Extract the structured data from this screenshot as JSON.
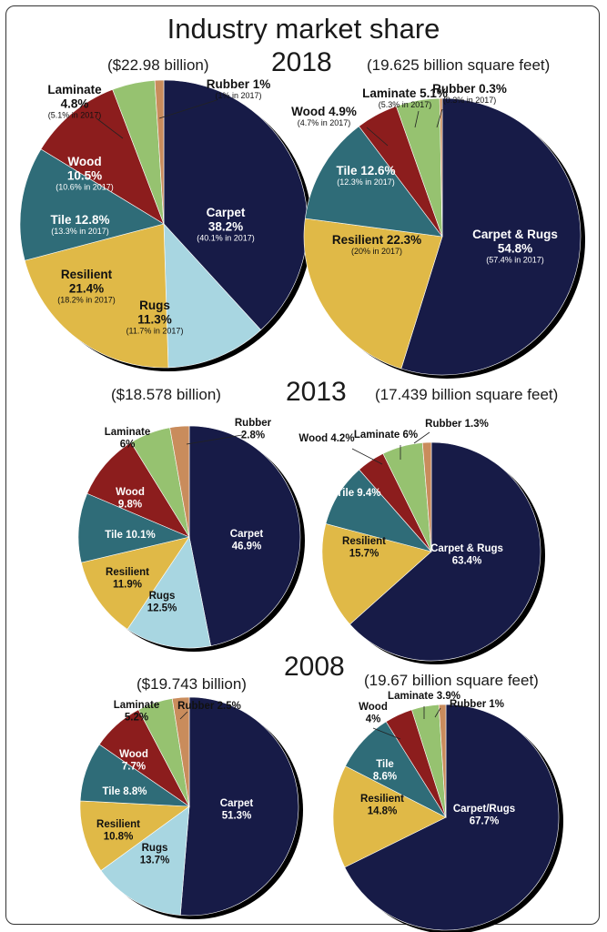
{
  "title": "Industry market share",
  "colors": {
    "Carpet": "#171b47",
    "Rugs": "#a8d6e1",
    "Resilient": "#e0b947",
    "Tile": "#2f6c78",
    "Wood": "#8c1d1d",
    "Laminate": "#96c270",
    "Rubber": "#c98c5c"
  },
  "sections": [
    {
      "year": "2018",
      "dollar_caption": "($22.98 billion)",
      "sqft_caption": "(19.625 billion square feet)"
    },
    {
      "year": "2013",
      "dollar_caption": "($18.578 billion)",
      "sqft_caption": "(17.439 billion square feet)"
    },
    {
      "year": "2008",
      "dollar_caption": "($19.743 billion)",
      "sqft_caption": "(19.67 billion square feet)"
    }
  ],
  "chart_data": [
    {
      "type": "pie",
      "year": "2018",
      "caption": "($22.98 billion)",
      "slices": [
        {
          "category": "Carpet",
          "value": 38.2,
          "label": "Carpet",
          "value_label": "38.2%",
          "prior": "(40.1% in 2017)"
        },
        {
          "category": "Rugs",
          "value": 11.3,
          "label": "Rugs",
          "value_label": "11.3%",
          "prior": "(11.7% in 2017)"
        },
        {
          "category": "Resilient",
          "value": 21.4,
          "label": "Resilient",
          "value_label": "21.4%",
          "prior": "(18.2% in 2017)"
        },
        {
          "category": "Tile",
          "value": 12.8,
          "label": "Tile 12.8%",
          "value_label": "",
          "prior": "(13.3% in 2017)"
        },
        {
          "category": "Wood",
          "value": 10.5,
          "label": "Wood",
          "value_label": "10.5%",
          "prior": "(10.6% in 2017)"
        },
        {
          "category": "Laminate",
          "value": 4.8,
          "label": "Laminate",
          "value_label": "4.8%",
          "prior": "(5.1% in 2017)"
        },
        {
          "category": "Rubber",
          "value": 1,
          "label": "Rubber 1%",
          "value_label": "",
          "prior": "(1% in 2017)"
        }
      ]
    },
    {
      "type": "pie",
      "year": "2018",
      "caption": "(19.625 billion square feet)",
      "slices": [
        {
          "category": "Carpet",
          "value": 54.8,
          "label": "Carpet & Rugs",
          "value_label": "54.8%",
          "prior": "(57.4% in 2017)"
        },
        {
          "category": "Resilient",
          "value": 22.3,
          "label": "Resilient 22.3%",
          "value_label": "",
          "prior": "(20% in 2017)"
        },
        {
          "category": "Tile",
          "value": 12.6,
          "label": "Tile 12.6%",
          "value_label": "",
          "prior": "(12.3% in 2017)"
        },
        {
          "category": "Wood",
          "value": 4.9,
          "label": "Wood 4.9%",
          "value_label": "",
          "prior": "(4.7% in 2017)"
        },
        {
          "category": "Laminate",
          "value": 5.1,
          "label": "Laminate 5.1%",
          "value_label": "",
          "prior": "(5.3% in 2017)"
        },
        {
          "category": "Rubber",
          "value": 0.3,
          "label": "Rubber 0.3%",
          "value_label": "",
          "prior": "(0.3% in 2017)"
        }
      ]
    },
    {
      "type": "pie",
      "year": "2013",
      "caption": "($18.578 billion)",
      "slices": [
        {
          "category": "Carpet",
          "value": 46.9,
          "label": "Carpet",
          "value_label": "46.9%",
          "prior": ""
        },
        {
          "category": "Rugs",
          "value": 12.5,
          "label": "Rugs",
          "value_label": "12.5%",
          "prior": ""
        },
        {
          "category": "Resilient",
          "value": 11.9,
          "label": "Resilient",
          "value_label": "11.9%",
          "prior": ""
        },
        {
          "category": "Tile",
          "value": 10.1,
          "label": "Tile 10.1%",
          "value_label": "",
          "prior": ""
        },
        {
          "category": "Wood",
          "value": 9.8,
          "label": "Wood",
          "value_label": "9.8%",
          "prior": ""
        },
        {
          "category": "Laminate",
          "value": 6,
          "label": "Laminate",
          "value_label": "6%",
          "prior": ""
        },
        {
          "category": "Rubber",
          "value": 2.8,
          "label": "Rubber",
          "value_label": "2.8%",
          "prior": ""
        }
      ]
    },
    {
      "type": "pie",
      "year": "2013",
      "caption": "(17.439 billion square feet)",
      "slices": [
        {
          "category": "Carpet",
          "value": 63.4,
          "label": "Carpet & Rugs",
          "value_label": "63.4%",
          "prior": ""
        },
        {
          "category": "Resilient",
          "value": 15.7,
          "label": "Resilient",
          "value_label": "15.7%",
          "prior": ""
        },
        {
          "category": "Tile",
          "value": 9.4,
          "label": "Tile 9.4%",
          "value_label": "",
          "prior": ""
        },
        {
          "category": "Wood",
          "value": 4.2,
          "label": "Wood 4.2%",
          "value_label": "",
          "prior": ""
        },
        {
          "category": "Laminate",
          "value": 6,
          "label": "Laminate 6%",
          "value_label": "",
          "prior": ""
        },
        {
          "category": "Rubber",
          "value": 1.3,
          "label": "Rubber 1.3%",
          "value_label": "",
          "prior": ""
        }
      ]
    },
    {
      "type": "pie",
      "year": "2008",
      "caption": "($19.743 billion)",
      "slices": [
        {
          "category": "Carpet",
          "value": 51.3,
          "label": "Carpet",
          "value_label": "51.3%",
          "prior": ""
        },
        {
          "category": "Rugs",
          "value": 13.7,
          "label": "Rugs",
          "value_label": "13.7%",
          "prior": ""
        },
        {
          "category": "Resilient",
          "value": 10.8,
          "label": "Resilient",
          "value_label": "10.8%",
          "prior": ""
        },
        {
          "category": "Tile",
          "value": 8.8,
          "label": "Tile 8.8%",
          "value_label": "",
          "prior": ""
        },
        {
          "category": "Wood",
          "value": 7.7,
          "label": "Wood",
          "value_label": "7.7%",
          "prior": ""
        },
        {
          "category": "Laminate",
          "value": 5.2,
          "label": "Laminate",
          "value_label": "5.2%",
          "prior": ""
        },
        {
          "category": "Rubber",
          "value": 2.5,
          "label": "Rubber 2.5%",
          "value_label": "",
          "prior": ""
        }
      ]
    },
    {
      "type": "pie",
      "year": "2008",
      "caption": "(19.67 billion square feet)",
      "slices": [
        {
          "category": "Carpet",
          "value": 67.7,
          "label": "Carpet/Rugs",
          "value_label": "67.7%",
          "prior": ""
        },
        {
          "category": "Resilient",
          "value": 14.8,
          "label": "Resilient",
          "value_label": "14.8%",
          "prior": ""
        },
        {
          "category": "Tile",
          "value": 8.6,
          "label": "Tile",
          "value_label": "8.6%",
          "prior": ""
        },
        {
          "category": "Wood",
          "value": 4,
          "label": "Wood",
          "value_label": "4%",
          "prior": ""
        },
        {
          "category": "Laminate",
          "value": 3.9,
          "label": "Laminate 3.9%",
          "value_label": "",
          "prior": ""
        },
        {
          "category": "Rubber",
          "value": 1,
          "label": "Rubber 1%",
          "value_label": "",
          "prior": ""
        }
      ]
    }
  ]
}
